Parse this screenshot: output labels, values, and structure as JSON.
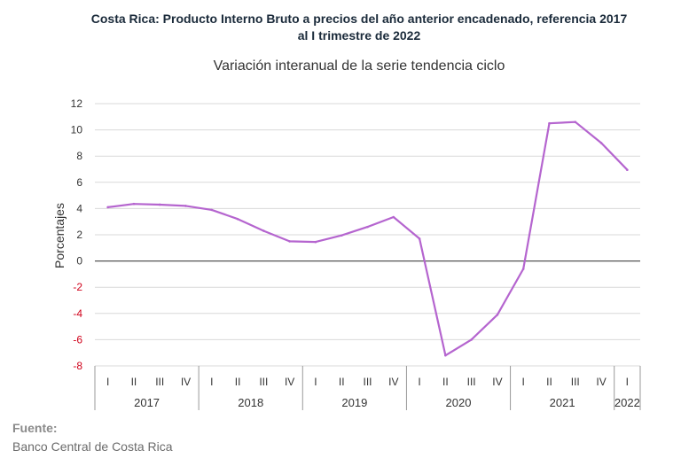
{
  "header": {
    "title_line1": "Costa Rica: Producto Interno Bruto a precios del año anterior encadenado, referencia 2017",
    "title_line2": "al I trimestre de 2022",
    "subtitle": "Variación interanual de la serie tendencia ciclo"
  },
  "footer": {
    "source_label": "Fuente:",
    "source_text": "Banco Central de Costa Rica"
  },
  "colors": {
    "line": "#b565cf",
    "negative_tick": "#d0021b",
    "grid": "#d9d9d9",
    "zero_line": "#555555"
  },
  "chart_data": {
    "type": "line",
    "title": "Variación interanual de la serie tendencia ciclo",
    "xlabel": "",
    "ylabel": "Porcentajes",
    "ylim": [
      -8,
      12
    ],
    "yticks": [
      12,
      10,
      8,
      6,
      4,
      2,
      0,
      -2,
      -4,
      -6,
      -8
    ],
    "grid": true,
    "x": [
      "2017-I",
      "2017-II",
      "2017-III",
      "2017-IV",
      "2018-I",
      "2018-II",
      "2018-III",
      "2018-IV",
      "2019-I",
      "2019-II",
      "2019-III",
      "2019-IV",
      "2020-I",
      "2020-II",
      "2020-III",
      "2020-IV",
      "2021-I",
      "2021-II",
      "2021-III",
      "2021-IV",
      "2022-I"
    ],
    "quarter_labels": [
      "I",
      "II",
      "III",
      "IV",
      "I",
      "II",
      "III",
      "IV",
      "I",
      "II",
      "III",
      "IV",
      "I",
      "II",
      "III",
      "IV",
      "I",
      "II",
      "III",
      "IV",
      "I"
    ],
    "years": [
      {
        "label": "2017",
        "quarters": 4
      },
      {
        "label": "2018",
        "quarters": 4
      },
      {
        "label": "2019",
        "quarters": 4
      },
      {
        "label": "2020",
        "quarters": 4
      },
      {
        "label": "2021",
        "quarters": 4
      },
      {
        "label": "2022",
        "quarters": 1
      }
    ],
    "series": [
      {
        "values": [
          4.1,
          4.35,
          4.3,
          4.2,
          3.9,
          3.2,
          2.3,
          1.5,
          1.45,
          1.95,
          2.6,
          3.35,
          1.7,
          -7.2,
          -6.0,
          -4.1,
          -0.6,
          10.5,
          10.6,
          9.0,
          6.95
        ]
      }
    ]
  }
}
